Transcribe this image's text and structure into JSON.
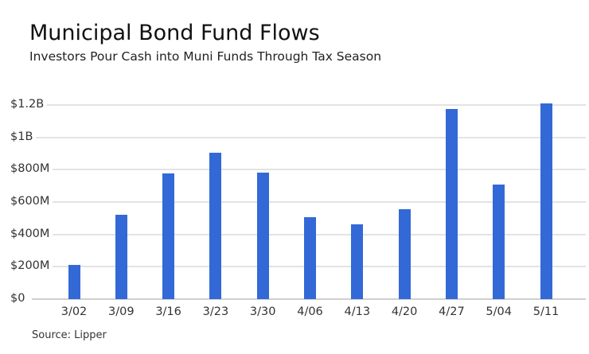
{
  "header": {
    "title": "Municipal Bond Fund Flows",
    "subtitle": "Investors Pour Cash into Muni Funds Through Tax Season"
  },
  "footer": {
    "source": "Source: Lipper"
  },
  "colors": {
    "bar": "#3369d6",
    "grid": "#e3e3e3"
  },
  "y_ticks": [
    "$0",
    "$200M",
    "$400M",
    "$600M",
    "$800M",
    "$1B",
    "$1.2B"
  ],
  "chart_data": {
    "type": "bar",
    "title": "Municipal Bond Fund Flows",
    "subtitle": "Investors Pour Cash into Muni Funds Through Tax Season",
    "categories": [
      "3/02",
      "3/09",
      "3/16",
      "3/23",
      "3/30",
      "4/06",
      "4/13",
      "4/20",
      "4/27",
      "5/04",
      "5/11"
    ],
    "values": [
      213,
      520,
      779,
      903,
      783,
      505,
      462,
      557,
      1175,
      707,
      1211
    ],
    "unit": "USD millions",
    "xlabel": "",
    "ylabel": "",
    "ylim": [
      0,
      1200
    ],
    "y_tick_values": [
      0,
      200,
      400,
      600,
      800,
      1000,
      1200
    ],
    "y_tick_labels": [
      "$0",
      "$200M",
      "$400M",
      "$600M",
      "$800M",
      "$1B",
      "$1.2B"
    ],
    "grid": true,
    "legend": null,
    "source": "Source: Lipper"
  }
}
